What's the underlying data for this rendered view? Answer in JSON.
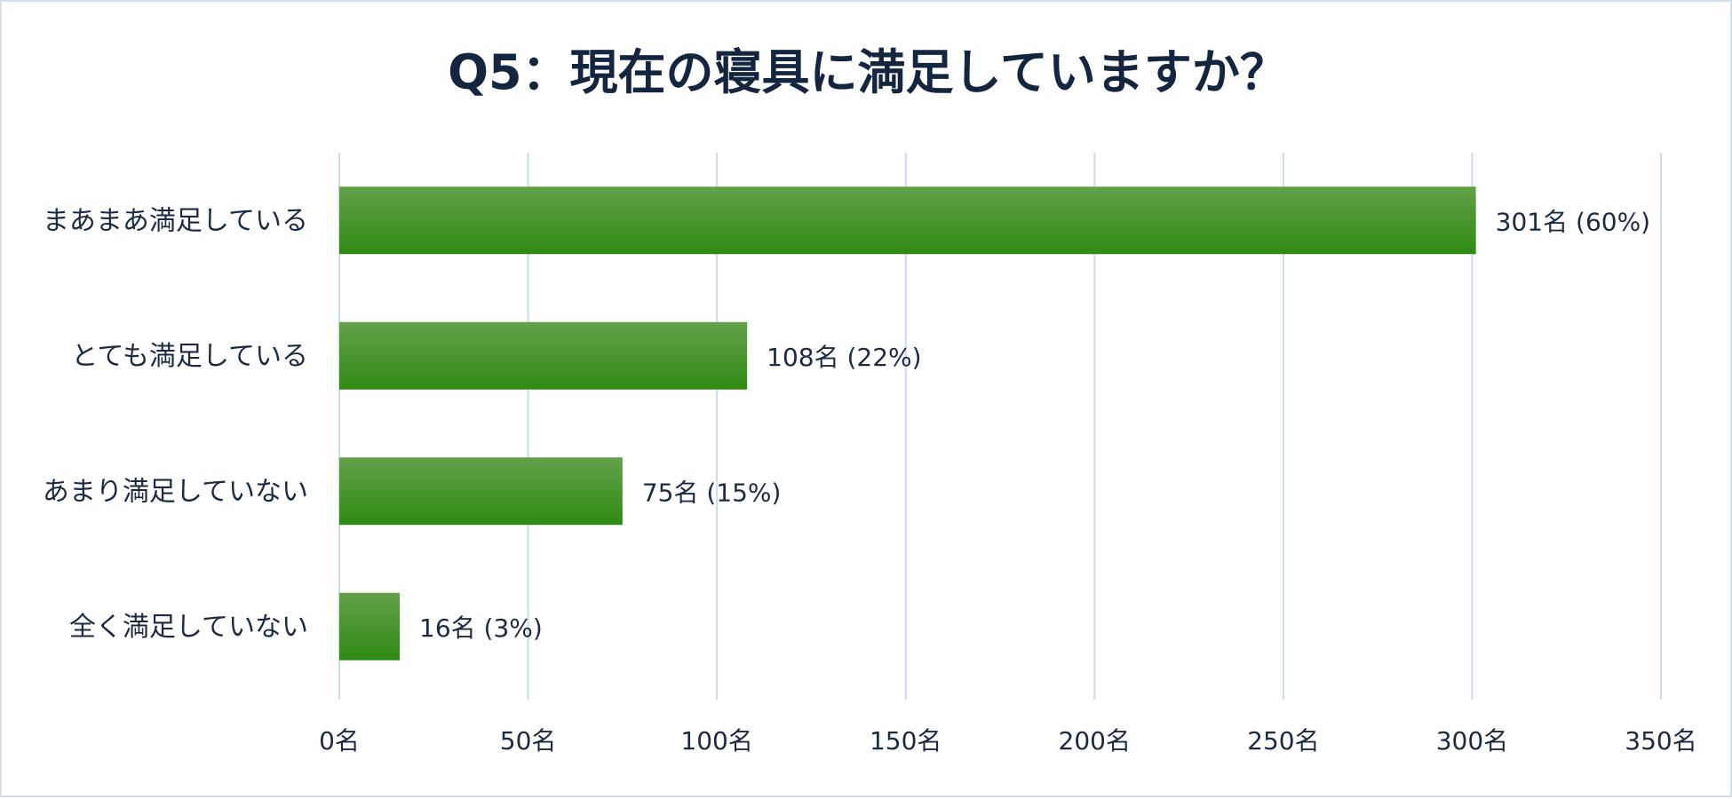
{
  "chart_data": {
    "type": "bar",
    "orientation": "horizontal",
    "title": "Q5：現在の寝具に満足していますか？",
    "categories": [
      "まあまあ満足している",
      "とても満足している",
      "あまり満足していない",
      "全く満足していない"
    ],
    "values": [
      301,
      108,
      75,
      16
    ],
    "data_labels": [
      "301名 (60%)",
      "108名 (22%)",
      "75名 (15%)",
      "16名 (3%)"
    ],
    "xlim": [
      0,
      350
    ],
    "x_ticks": [
      0,
      50,
      100,
      150,
      200,
      250,
      300,
      350
    ],
    "x_tick_labels": [
      "0名",
      "50名",
      "100名",
      "150名",
      "200名",
      "250名",
      "300名",
      "350名"
    ],
    "grid": true,
    "legend": "none",
    "colors": {
      "bar_top": "#63a14a",
      "bar_bottom": "#2f8a12",
      "grid": "#c9dced",
      "text": "#1c2b44",
      "title": "#14253f"
    }
  }
}
